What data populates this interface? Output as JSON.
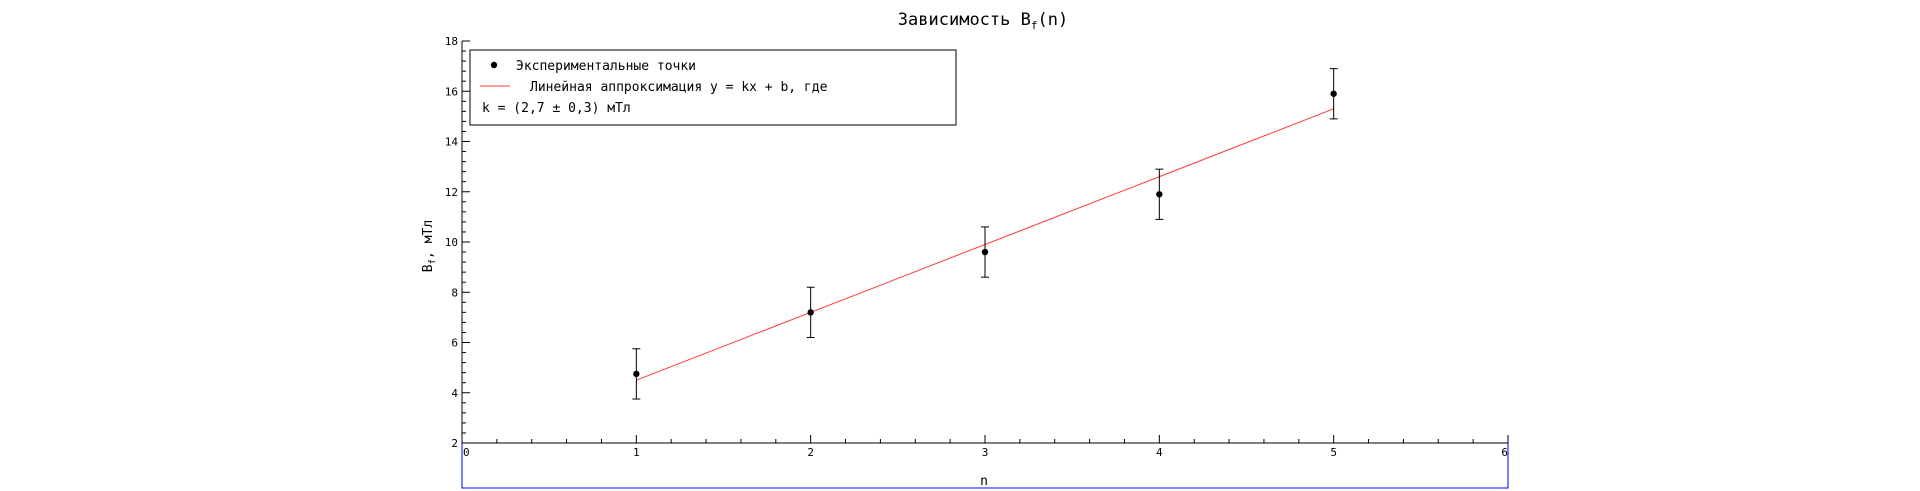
{
  "chart_data": {
    "type": "scatter",
    "title": "Зависимость B",
    "title_sub": "f",
    "title_suffix": "(n)",
    "xlabel": "n",
    "ylabel": "B",
    "ylabel_sub": "f",
    "ylabel_suffix": ", мТл",
    "xlim": [
      0,
      6
    ],
    "ylim": [
      2,
      18
    ],
    "x_ticks": [
      0,
      1,
      2,
      3,
      4,
      5,
      6
    ],
    "y_ticks": [
      2,
      4,
      6,
      8,
      10,
      12,
      14,
      16,
      18
    ],
    "grid": false,
    "legend_position": "top-left",
    "series": [
      {
        "name": "Экспериментальные точки",
        "kind": "points-with-errorbars",
        "x": [
          1,
          2,
          3,
          4,
          5
        ],
        "y": [
          4.75,
          7.2,
          9.6,
          11.9,
          15.9
        ],
        "yerr": [
          1.0,
          1.0,
          1.0,
          1.0,
          1.0
        ],
        "color": "#000000"
      },
      {
        "name": "Линейная аппроксимация y = kx + b, где",
        "kind": "line",
        "x": [
          1,
          5
        ],
        "y": [
          4.5,
          15.3
        ],
        "color": "#ff3b3b"
      }
    ],
    "legend_note": "k = (2,7 ± 0,3) мТл",
    "colors": {
      "axis": "#000000",
      "frame": "#0000ff",
      "fit": "#ff3b3b"
    }
  }
}
